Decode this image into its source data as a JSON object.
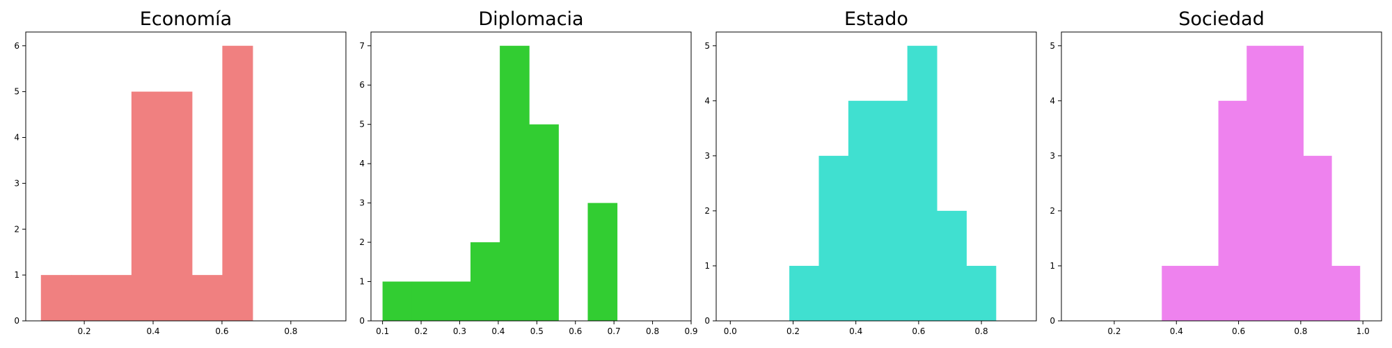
{
  "chart_data": [
    {
      "type": "bar",
      "title": "Economía",
      "color": "#f08080",
      "xlim": [
        0.03,
        0.96
      ],
      "ylim": [
        0,
        6.3
      ],
      "xticks": [
        0.2,
        0.4,
        0.6,
        0.8
      ],
      "xtick_labels": [
        "0.2",
        "0.4",
        "0.6",
        "0.8"
      ],
      "yticks": [
        0,
        1,
        2,
        3,
        4,
        5,
        6
      ],
      "ytick_labels": [
        "0",
        "1",
        "2",
        "3",
        "4",
        "5",
        "6"
      ],
      "bins": [
        {
          "x0": 0.074,
          "x1": 0.162,
          "count": 1
        },
        {
          "x0": 0.162,
          "x1": 0.25,
          "count": 1
        },
        {
          "x0": 0.25,
          "x1": 0.337,
          "count": 1
        },
        {
          "x0": 0.337,
          "x1": 0.425,
          "count": 5
        },
        {
          "x0": 0.425,
          "x1": 0.513,
          "count": 5
        },
        {
          "x0": 0.513,
          "x1": 0.601,
          "count": 1
        },
        {
          "x0": 0.601,
          "x1": 0.689,
          "count": 6
        }
      ]
    },
    {
      "type": "bar",
      "title": "Diplomacia",
      "color": "#32cd32",
      "xlim": [
        0.07,
        0.9
      ],
      "ylim": [
        0,
        7.35
      ],
      "xticks": [
        0.1,
        0.2,
        0.3,
        0.4,
        0.5,
        0.6,
        0.7,
        0.8,
        0.9
      ],
      "xtick_labels": [
        "0.1",
        "0.2",
        "0.3",
        "0.4",
        "0.5",
        "0.6",
        "0.7",
        "0.8",
        "0.9"
      ],
      "yticks": [
        0,
        1,
        2,
        3,
        4,
        5,
        6,
        7
      ],
      "ytick_labels": [
        "0",
        "1",
        "2",
        "3",
        "4",
        "5",
        "6",
        "7"
      ],
      "bins": [
        {
          "x0": 0.1,
          "x1": 0.176,
          "count": 1
        },
        {
          "x0": 0.176,
          "x1": 0.252,
          "count": 1
        },
        {
          "x0": 0.252,
          "x1": 0.328,
          "count": 1
        },
        {
          "x0": 0.328,
          "x1": 0.404,
          "count": 2
        },
        {
          "x0": 0.404,
          "x1": 0.48,
          "count": 7
        },
        {
          "x0": 0.48,
          "x1": 0.556,
          "count": 5
        },
        {
          "x0": 0.556,
          "x1": 0.632,
          "count": 0
        },
        {
          "x0": 0.632,
          "x1": 0.708,
          "count": 3
        }
      ]
    },
    {
      "type": "bar",
      "title": "Estado",
      "color": "#40e0d0",
      "xlim": [
        -0.045,
        0.975
      ],
      "ylim": [
        0,
        5.25
      ],
      "xticks": [
        0.0,
        0.2,
        0.4,
        0.6,
        0.8
      ],
      "xtick_labels": [
        "0.0",
        "0.2",
        "0.4",
        "0.6",
        "0.8"
      ],
      "yticks": [
        0,
        1,
        2,
        3,
        4,
        5
      ],
      "ytick_labels": [
        "0",
        "1",
        "2",
        "3",
        "4",
        "5"
      ],
      "bins": [
        {
          "x0": 0.0,
          "x1": 0.094,
          "count": 0
        },
        {
          "x0": 0.188,
          "x1": 0.282,
          "count": 1
        },
        {
          "x0": 0.282,
          "x1": 0.376,
          "count": 3
        },
        {
          "x0": 0.376,
          "x1": 0.47,
          "count": 4
        },
        {
          "x0": 0.47,
          "x1": 0.564,
          "count": 4
        },
        {
          "x0": 0.564,
          "x1": 0.658,
          "count": 5
        },
        {
          "x0": 0.658,
          "x1": 0.752,
          "count": 2
        },
        {
          "x0": 0.752,
          "x1": 0.846,
          "count": 1
        }
      ]
    },
    {
      "type": "bar",
      "title": "Sociedad",
      "color": "#ee82ee",
      "xlim": [
        0.03,
        1.06
      ],
      "ylim": [
        0,
        5.25
      ],
      "xticks": [
        0.2,
        0.4,
        0.6,
        0.8,
        1.0
      ],
      "xtick_labels": [
        "0.2",
        "0.4",
        "0.6",
        "0.8",
        "1.0"
      ],
      "yticks": [
        0,
        1,
        2,
        3,
        4,
        5
      ],
      "ytick_labels": [
        "0",
        "1",
        "2",
        "3",
        "4",
        "5"
      ],
      "bins": [
        {
          "x0": 0.353,
          "x1": 0.444,
          "count": 1
        },
        {
          "x0": 0.444,
          "x1": 0.535,
          "count": 1
        },
        {
          "x0": 0.535,
          "x1": 0.626,
          "count": 4
        },
        {
          "x0": 0.626,
          "x1": 0.717,
          "count": 5
        },
        {
          "x0": 0.717,
          "x1": 0.808,
          "count": 5
        },
        {
          "x0": 0.808,
          "x1": 0.899,
          "count": 3
        },
        {
          "x0": 0.899,
          "x1": 0.99,
          "count": 1
        }
      ]
    }
  ]
}
